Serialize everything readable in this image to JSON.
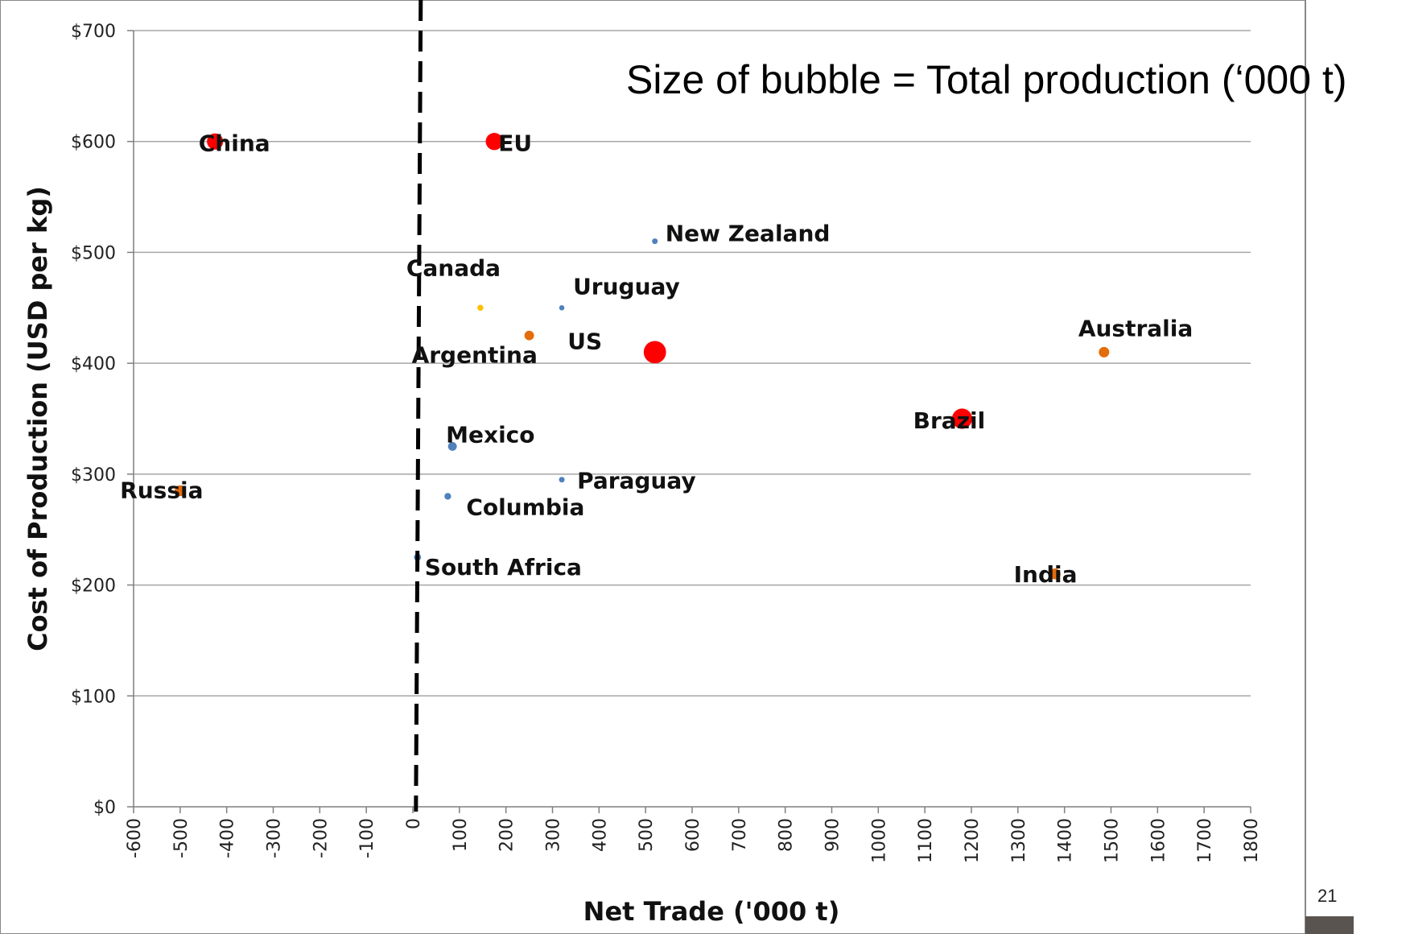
{
  "page_number": "21",
  "colors": {
    "red": "#ff0000",
    "orange": "#e46c0a",
    "blue": "#4f81bd",
    "yellow": "#ffc000",
    "grid": "#a6a6a6",
    "divider": "#000000",
    "footer_bar": "#5a5450"
  },
  "chart_data": {
    "type": "bubble",
    "annotation": "Size of bubble = Total production (‘000 t)",
    "xlabel": "Net Trade ('000 t)",
    "ylabel": "Cost of Production (USD per kg)",
    "xlim": [
      -600,
      1800
    ],
    "ylim": [
      0,
      700
    ],
    "x_ticks": [
      -600,
      -500,
      -400,
      -300,
      -200,
      -100,
      0,
      100,
      200,
      300,
      400,
      500,
      600,
      700,
      800,
      900,
      1000,
      1100,
      1200,
      1300,
      1400,
      1500,
      1600,
      1700,
      1800
    ],
    "y_ticks": [
      0,
      100,
      200,
      300,
      400,
      500,
      600,
      700
    ],
    "y_tick_labels": [
      "$0",
      "$100",
      "$200",
      "$300",
      "$400",
      "$500",
      "$600",
      "$700"
    ],
    "grid": "horizontal",
    "reference_line_x": 10,
    "points": [
      {
        "label": "China",
        "x": -425,
        "y": 600,
        "size": 5800,
        "color": "red"
      },
      {
        "label": "EU",
        "x": 175,
        "y": 600,
        "size": 6500,
        "color": "red"
      },
      {
        "label": "New Zealand",
        "x": 520,
        "y": 510,
        "size": 700,
        "color": "blue"
      },
      {
        "label": "Canada",
        "x": 145,
        "y": 450,
        "size": 800,
        "color": "yellow"
      },
      {
        "label": "Argentina",
        "x": 250,
        "y": 425,
        "size": 2000,
        "color": "orange"
      },
      {
        "label": "Uruguay",
        "x": 320,
        "y": 450,
        "size": 600,
        "color": "blue"
      },
      {
        "label": "US",
        "x": 520,
        "y": 410,
        "size": 11000,
        "color": "red"
      },
      {
        "label": "Australia",
        "x": 1485,
        "y": 410,
        "size": 2400,
        "color": "orange"
      },
      {
        "label": "Brazil",
        "x": 1180,
        "y": 350,
        "size": 9000,
        "color": "red"
      },
      {
        "label": "Mexico",
        "x": 85,
        "y": 325,
        "size": 1700,
        "color": "blue"
      },
      {
        "label": "Paraguay",
        "x": 320,
        "y": 295,
        "size": 700,
        "color": "blue"
      },
      {
        "label": "Columbia",
        "x": 75,
        "y": 280,
        "size": 1000,
        "color": "blue"
      },
      {
        "label": "Russia",
        "x": -500,
        "y": 285,
        "size": 2600,
        "color": "orange"
      },
      {
        "label": "South Africa",
        "x": 10,
        "y": 225,
        "size": 1100,
        "color": "blue"
      },
      {
        "label": "India",
        "x": 1380,
        "y": 210,
        "size": 2600,
        "color": "orange"
      }
    ]
  }
}
